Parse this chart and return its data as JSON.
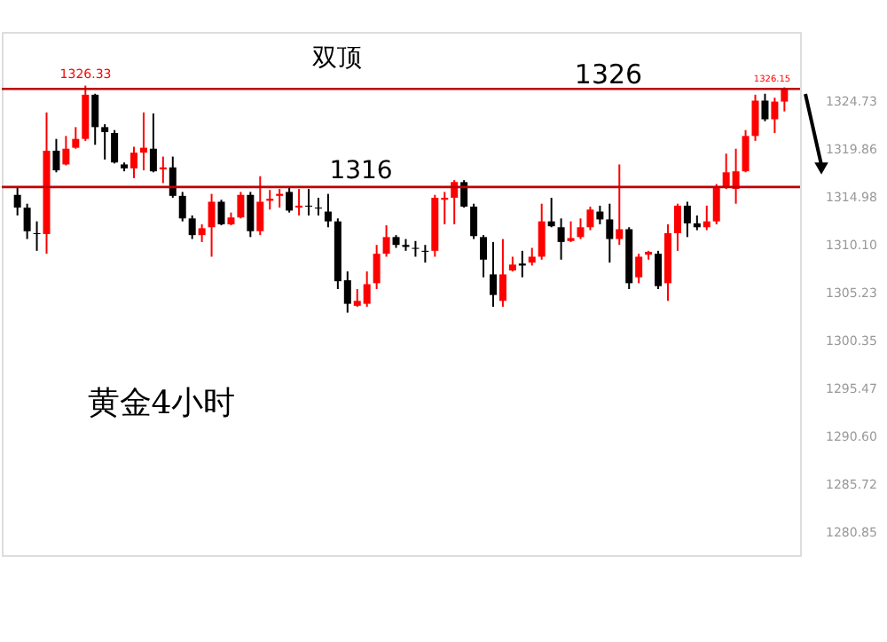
{
  "chart_data": {
    "type": "candlestick",
    "categories": [
      null,
      null,
      null,
      null,
      null,
      null,
      null,
      null,
      null,
      null,
      null,
      null,
      null,
      null,
      null,
      null,
      null,
      null,
      null,
      null,
      null,
      null,
      null,
      null,
      null,
      null,
      null,
      null,
      null,
      null,
      null,
      null,
      null,
      null,
      null,
      null,
      null,
      null,
      null,
      null,
      null,
      null,
      null,
      null,
      null,
      null,
      null,
      null,
      null,
      null,
      null,
      null,
      null,
      null,
      null,
      null,
      null,
      null,
      null,
      null,
      null,
      null,
      null,
      null,
      null,
      null,
      null,
      null,
      null,
      null,
      null,
      null,
      null,
      null,
      null,
      null,
      null,
      null,
      null,
      null
    ],
    "ohlc": [
      [
        1315.2,
        1315.9,
        1313.1,
        1313.9
      ],
      [
        1313.9,
        1314.3,
        1310.7,
        1311.5
      ],
      [
        1311.3,
        1312.5,
        1309.5,
        1311.2
      ],
      [
        1311.2,
        1323.6,
        1309.2,
        1319.7
      ],
      [
        1319.7,
        1320.9,
        1317.5,
        1317.7
      ],
      [
        1318.3,
        1321.2,
        1318.2,
        1319.9
      ],
      [
        1320.0,
        1322.1,
        1319.9,
        1320.9
      ],
      [
        1320.9,
        1326.33,
        1320.7,
        1325.4
      ],
      [
        1325.4,
        1325.5,
        1320.3,
        1322.1
      ],
      [
        1322.1,
        1322.4,
        1318.8,
        1321.6
      ],
      [
        1321.5,
        1321.8,
        1318.4,
        1318.5
      ],
      [
        1318.3,
        1318.5,
        1317.6,
        1317.9
      ],
      [
        1317.9,
        1320.1,
        1316.9,
        1319.5
      ],
      [
        1319.5,
        1323.6,
        1317.7,
        1320.0
      ],
      [
        1319.9,
        1323.5,
        1317.5,
        1317.6
      ],
      [
        1317.8,
        1319.1,
        1316.4,
        1318.0
      ],
      [
        1318.0,
        1319.1,
        1314.9,
        1315.1
      ],
      [
        1315.1,
        1315.5,
        1312.5,
        1312.8
      ],
      [
        1312.8,
        1313.1,
        1310.7,
        1311.1
      ],
      [
        1311.1,
        1312.2,
        1310.4,
        1311.8
      ],
      [
        1311.9,
        1315.3,
        1308.9,
        1314.5
      ],
      [
        1314.5,
        1314.7,
        1312.1,
        1312.2
      ],
      [
        1312.2,
        1313.4,
        1312.1,
        1312.9
      ],
      [
        1312.9,
        1315.5,
        1312.8,
        1315.2
      ],
      [
        1315.2,
        1315.5,
        1310.9,
        1311.5
      ],
      [
        1311.5,
        1317.1,
        1311.1,
        1314.5
      ],
      [
        1314.6,
        1315.7,
        1313.7,
        1314.8
      ],
      [
        1315.1,
        1315.8,
        1313.9,
        1315.3
      ],
      [
        1315.5,
        1315.9,
        1313.4,
        1313.6
      ],
      [
        1313.9,
        1315.8,
        1313.1,
        1314.1
      ],
      [
        1314.1,
        1315.8,
        1313.1,
        1314.0
      ],
      [
        1313.9,
        1314.9,
        1313.1,
        1313.8
      ],
      [
        1313.5,
        1315.3,
        1311.9,
        1312.5
      ],
      [
        1312.5,
        1312.8,
        1305.6,
        1306.4
      ],
      [
        1306.5,
        1307.4,
        1303.2,
        1304.1
      ],
      [
        1303.9,
        1305.6,
        1303.8,
        1304.4
      ],
      [
        1304.1,
        1307.4,
        1303.8,
        1306.1
      ],
      [
        1306.2,
        1310.1,
        1305.6,
        1309.2
      ],
      [
        1309.2,
        1312.1,
        1308.9,
        1310.9
      ],
      [
        1310.9,
        1311.1,
        1309.8,
        1310.1
      ],
      [
        1310.1,
        1310.7,
        1309.5,
        1309.9
      ],
      [
        1309.8,
        1310.5,
        1308.9,
        1309.7
      ],
      [
        1309.5,
        1310.1,
        1308.3,
        1309.4
      ],
      [
        1309.5,
        1315.2,
        1308.9,
        1314.9
      ],
      [
        1314.7,
        1315.5,
        1312.2,
        1314.9
      ],
      [
        1314.9,
        1316.7,
        1312.2,
        1316.5
      ],
      [
        1316.5,
        1316.7,
        1313.9,
        1314.0
      ],
      [
        1314.0,
        1314.3,
        1310.7,
        1311.0
      ],
      [
        1310.9,
        1311.1,
        1306.8,
        1308.6
      ],
      [
        1307.1,
        1310.4,
        1303.8,
        1305.0
      ],
      [
        1304.4,
        1310.7,
        1303.8,
        1307.1
      ],
      [
        1307.5,
        1308.9,
        1307.4,
        1308.1
      ],
      [
        1308.2,
        1309.5,
        1306.8,
        1308.0
      ],
      [
        1308.3,
        1309.8,
        1308.0,
        1308.9
      ],
      [
        1308.9,
        1314.3,
        1308.6,
        1312.5
      ],
      [
        1312.5,
        1314.9,
        1311.9,
        1312.0
      ],
      [
        1311.9,
        1312.8,
        1308.6,
        1310.4
      ],
      [
        1310.5,
        1312.5,
        1310.4,
        1310.8
      ],
      [
        1310.9,
        1312.8,
        1310.7,
        1311.9
      ],
      [
        1311.9,
        1314.0,
        1311.6,
        1313.7
      ],
      [
        1313.5,
        1314.1,
        1312.2,
        1312.7
      ],
      [
        1312.7,
        1314.3,
        1308.3,
        1310.7
      ],
      [
        1310.7,
        1318.3,
        1310.1,
        1311.7
      ],
      [
        1311.7,
        1311.9,
        1305.6,
        1306.2
      ],
      [
        1306.8,
        1309.2,
        1306.2,
        1308.9
      ],
      [
        1309.1,
        1309.5,
        1308.6,
        1309.4
      ],
      [
        1309.2,
        1309.5,
        1305.6,
        1305.9
      ],
      [
        1306.2,
        1312.2,
        1304.4,
        1311.3
      ],
      [
        1311.3,
        1314.3,
        1309.5,
        1314.1
      ],
      [
        1314.1,
        1314.5,
        1310.9,
        1312.3
      ],
      [
        1312.3,
        1313.1,
        1311.6,
        1311.9
      ],
      [
        1311.9,
        1314.1,
        1311.6,
        1312.5
      ],
      [
        1312.5,
        1316.3,
        1312.2,
        1315.9
      ],
      [
        1315.9,
        1319.4,
        1315.8,
        1317.5
      ],
      [
        1315.8,
        1319.9,
        1314.3,
        1317.6
      ],
      [
        1317.6,
        1321.8,
        1317.5,
        1321.2
      ],
      [
        1321.2,
        1325.4,
        1320.7,
        1324.8
      ],
      [
        1324.8,
        1325.5,
        1322.7,
        1322.9
      ],
      [
        1322.9,
        1325.1,
        1321.5,
        1324.7
      ],
      [
        1324.7,
        1326.15,
        1323.7,
        1326.0
      ]
    ],
    "ylim": [
      1278.5,
      1331.8
    ],
    "yticks": [
      1324.73,
      1319.86,
      1314.98,
      {
        "value": 1310.1,
        "label": "1310.10"
      },
      1305.23,
      1300.35,
      1295.47,
      {
        "value": 1290.6,
        "label": "1290.60"
      },
      1285.72,
      1280.85
    ],
    "ref_lines": [
      {
        "axis": "y",
        "value": 1326,
        "label": "1326",
        "color": "#c00000"
      },
      {
        "axis": "y",
        "value": 1316,
        "label": "1316",
        "color": "#c00000"
      }
    ],
    "annotations": [
      "1326.33",
      "1326.15",
      "双顶",
      "黄金4小时"
    ],
    "grid": false
  }
}
